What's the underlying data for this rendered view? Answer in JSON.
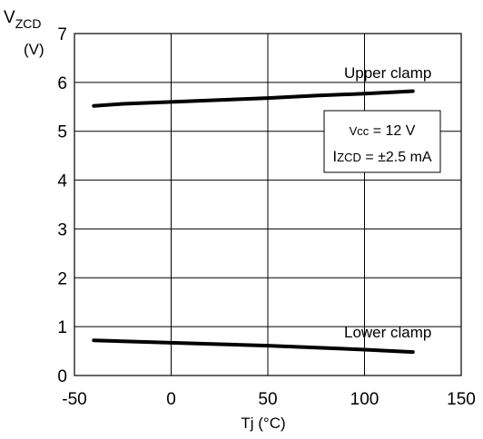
{
  "chart_data": {
    "type": "line",
    "title": "",
    "xlabel": "Tj  (°C)",
    "ylabel_main": "V",
    "ylabel_sub": "ZCD",
    "ylabel_unit": "(V)",
    "xlim": [
      -50,
      150
    ],
    "ylim": [
      0,
      7
    ],
    "xticks": [
      -50,
      0,
      50,
      100,
      150
    ],
    "yticks": [
      0,
      1,
      2,
      3,
      4,
      5,
      6,
      7
    ],
    "xtick_labels": [
      "-50",
      "0",
      "50",
      "100",
      "150"
    ],
    "ytick_labels": [
      "0",
      "1",
      "2",
      "3",
      "4",
      "5",
      "6",
      "7"
    ],
    "grid": true,
    "series": [
      {
        "name": "Upper clamp",
        "x": [
          -40,
          -25,
          0,
          25,
          50,
          75,
          100,
          125
        ],
        "y": [
          5.52,
          5.56,
          5.6,
          5.64,
          5.68,
          5.73,
          5.77,
          5.82
        ]
      },
      {
        "name": "Lower clamp",
        "x": [
          -40,
          -25,
          0,
          25,
          50,
          75,
          100,
          125
        ],
        "y": [
          0.72,
          0.7,
          0.67,
          0.64,
          0.61,
          0.57,
          0.53,
          0.48
        ]
      }
    ],
    "conditions": {
      "vcc_label": "Vcc",
      "vcc_value": " = 12 V",
      "i_main": "I",
      "i_sub": "ZCD",
      "i_value": " = ±2.5 mA"
    },
    "line_color": "#000000"
  }
}
